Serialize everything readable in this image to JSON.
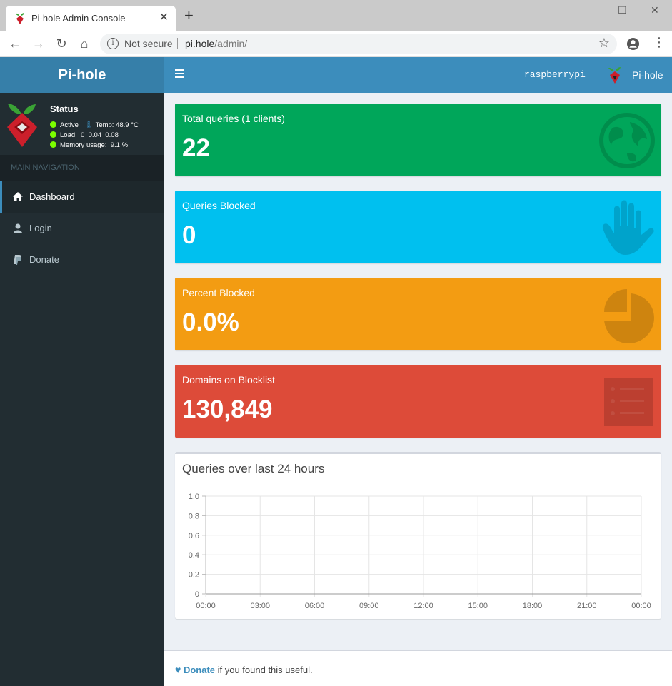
{
  "browser": {
    "tab_title": "Pi-hole Admin Console",
    "new_tab": "+",
    "close_tab": "✕",
    "security": "Not secure",
    "url_host": "pi.hole",
    "url_path": "/admin/"
  },
  "header": {
    "logo": "Pi-hole",
    "hostname": "raspberrypi",
    "user": "Pi-hole"
  },
  "status": {
    "title": "Status",
    "active": "Active",
    "temp": "Temp: 48.9 °C",
    "load": "Load:  0  0.04  0.08",
    "memory": "Memory usage:  9.1 %"
  },
  "sidebar": {
    "header": "MAIN NAVIGATION",
    "items": [
      {
        "label": "Dashboard",
        "icon": "home-icon",
        "active": true
      },
      {
        "label": "Login",
        "icon": "user-icon",
        "active": false
      },
      {
        "label": "Donate",
        "icon": "paypal-icon",
        "active": false
      }
    ]
  },
  "stats": [
    {
      "label": "Total queries (1 clients)",
      "value": "22",
      "color": "#00a65a",
      "icon": "globe-icon"
    },
    {
      "label": "Queries Blocked",
      "value": "0",
      "color": "#00c0ef",
      "icon": "hand-icon"
    },
    {
      "label": "Percent Blocked",
      "value": "0.0%",
      "color": "#f39c12",
      "icon": "pie-chart-icon"
    },
    {
      "label": "Domains on Blocklist",
      "value": "130,849",
      "color": "#dd4b39",
      "icon": "list-icon"
    }
  ],
  "chart_data": {
    "type": "line",
    "title": "Queries over last 24 hours",
    "x": [
      "00:00",
      "03:00",
      "06:00",
      "09:00",
      "12:00",
      "15:00",
      "18:00",
      "21:00",
      "00:00"
    ],
    "yticks": [
      "1.0",
      "0.8",
      "0.6",
      "0.4",
      "0.2",
      "0"
    ],
    "ylim": [
      0,
      1.0
    ],
    "series": [],
    "grid": true
  },
  "footer": {
    "donate": "Donate",
    "text": " if you found this useful."
  }
}
